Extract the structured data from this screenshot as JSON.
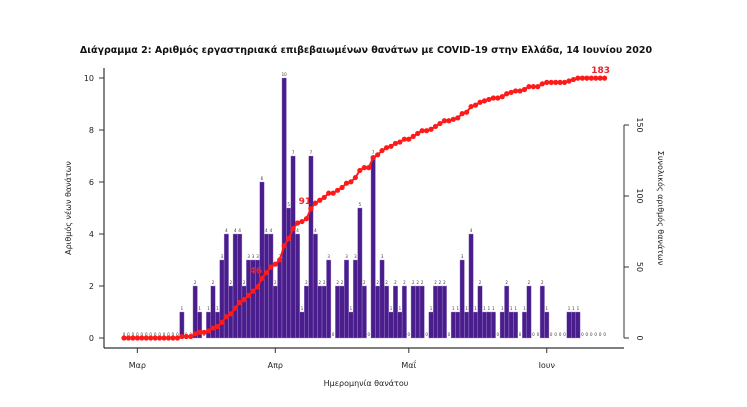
{
  "chart_data": {
    "type": "bar",
    "title": "Διάγραμμα 2: Αριθμός εργαστηριακά επιβεβαιωμένων θανάτων με COVID-19 στην Ελλάδα, 14 Ιουνίου 2020",
    "xlabel": "Ημερομηνία θανάτου",
    "ylabel": "Αριθμός νέων θανάτων",
    "y2label": "Συνολικός αριθμός θανάτων",
    "start_date": "2020-02-26",
    "end_date": "2020-06-14",
    "ylim": [
      0,
      10
    ],
    "yticks": [
      "0",
      "2",
      "4",
      "6",
      "8",
      "10"
    ],
    "y2lim": [
      0,
      150
    ],
    "y2ticks": [
      "0",
      "50",
      "100",
      "150"
    ],
    "xticks": [
      {
        "label": "Μαρ",
        "day_index": 3
      },
      {
        "label": "Απρ",
        "day_index": 34
      },
      {
        "label": "Μαΐ",
        "day_index": 64
      },
      {
        "label": "Ιουν",
        "day_index": 95
      }
    ],
    "series": [
      {
        "name": "Νέοι θάνατοι",
        "kind": "bar",
        "color": "#4a1d8c",
        "values": [
          0,
          0,
          0,
          0,
          0,
          0,
          0,
          0,
          0,
          0,
          0,
          0,
          0,
          1,
          0,
          0,
          2,
          1,
          0,
          1,
          2,
          1,
          3,
          4,
          2,
          4,
          4,
          2,
          3,
          3,
          3,
          6,
          4,
          4,
          2,
          3,
          10,
          5,
          7,
          4,
          1,
          2,
          7,
          4,
          2,
          2,
          3,
          0,
          2,
          2,
          3,
          1,
          3,
          5,
          2,
          0,
          7,
          2,
          3,
          2,
          1,
          2,
          1,
          2,
          0,
          2,
          2,
          2,
          0,
          1,
          2,
          2,
          2,
          0,
          1,
          1,
          3,
          1,
          4,
          1,
          2,
          1,
          1,
          1,
          0,
          1,
          2,
          1,
          1,
          0,
          1,
          2,
          0,
          0,
          2,
          1,
          0,
          0,
          0,
          0,
          1,
          1,
          1,
          0,
          0,
          0,
          0,
          0,
          0
        ]
      },
      {
        "name": "Συνολικός αριθμός θανάτων",
        "kind": "line",
        "color": "#ff1a1a",
        "axis": "right",
        "derived": "cumulative of new deaths"
      }
    ],
    "annotations": [
      {
        "text": "46",
        "day_index": 31
      },
      {
        "text": "91",
        "day_index": 42
      },
      {
        "text": "183",
        "day_index": 108
      }
    ]
  }
}
